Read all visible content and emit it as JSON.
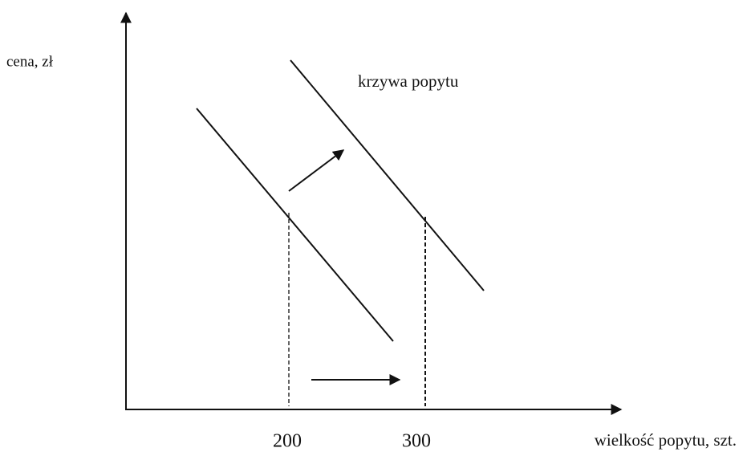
{
  "axes": {
    "y_label": "cena, zł",
    "x_label": "wielkość popytu, szt."
  },
  "curve_label": "krzywa popytu",
  "x_marks": [
    "200",
    "300"
  ]
}
